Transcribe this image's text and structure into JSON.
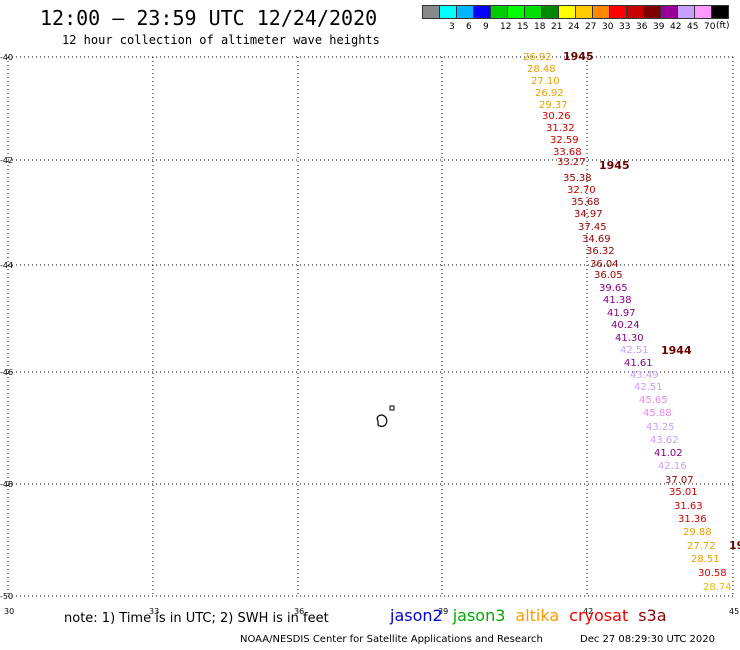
{
  "title": "12:00 – 23:59 UTC 12/24/2020",
  "subtitle": "12 hour collection of altimeter wave heights",
  "colorbar": {
    "swatches": [
      {
        "color": "#888888",
        "label": ""
      },
      {
        "color": "#00ffff",
        "label": "3"
      },
      {
        "color": "#00b4ff",
        "label": "6"
      },
      {
        "color": "#0000ff",
        "label": "9"
      },
      {
        "color": "#00cc00",
        "label": "12"
      },
      {
        "color": "#00ff00",
        "label": "15"
      },
      {
        "color": "#00e000",
        "label": "18"
      },
      {
        "color": "#008800",
        "label": "21"
      },
      {
        "color": "#ffff00",
        "label": "24"
      },
      {
        "color": "#ffcc00",
        "label": "27"
      },
      {
        "color": "#ff8800",
        "label": "30"
      },
      {
        "color": "#ff0000",
        "label": "33"
      },
      {
        "color": "#c80000",
        "label": "36"
      },
      {
        "color": "#800000",
        "label": "39"
      },
      {
        "color": "#990099",
        "label": "42"
      },
      {
        "color": "#c8a0ff",
        "label": "45"
      },
      {
        "color": "#ff99ff",
        "label": "70"
      },
      {
        "color": "#000000",
        "label": ""
      }
    ],
    "unit": "(ft)"
  },
  "map": {
    "lon_range": [
      30,
      45
    ],
    "lat_range": [
      -50,
      -40
    ],
    "grid": true,
    "y_ticks": [
      "-40",
      "-42",
      "-44",
      "-46",
      "-48",
      "-50"
    ],
    "x_ticks": [
      "30",
      "33",
      "36",
      "39",
      "42",
      "45"
    ]
  },
  "track_values": [
    {
      "text": "26.92",
      "color": "#e6a000"
    },
    {
      "text": "28.48",
      "color": "#e6a000"
    },
    {
      "text": "27.10",
      "color": "#e6a000"
    },
    {
      "text": "26.92",
      "color": "#e6a000"
    },
    {
      "text": "29.37",
      "color": "#e6a000"
    },
    {
      "text": "30.26",
      "color": "#cc0000"
    },
    {
      "text": "31.32",
      "color": "#cc0000"
    },
    {
      "text": "32.59",
      "color": "#cc0000"
    },
    {
      "text": "33.68",
      "color": "#cc0000"
    },
    {
      "text": "33.27",
      "color": "#cc0000"
    },
    {
      "text": "35.38",
      "color": "#990000"
    },
    {
      "text": "32.70",
      "color": "#cc0000"
    },
    {
      "text": "35.68",
      "color": "#990000"
    },
    {
      "text": "34.97",
      "color": "#990000"
    },
    {
      "text": "37.45",
      "color": "#990000"
    },
    {
      "text": "34.69",
      "color": "#990000"
    },
    {
      "text": "36.32",
      "color": "#990000"
    },
    {
      "text": "36.04",
      "color": "#990000"
    },
    {
      "text": "36.05",
      "color": "#990000"
    },
    {
      "text": "39.65",
      "color": "#880088"
    },
    {
      "text": "41.38",
      "color": "#880088"
    },
    {
      "text": "41.97",
      "color": "#880088"
    },
    {
      "text": "40.24",
      "color": "#880088"
    },
    {
      "text": "41.30",
      "color": "#880088"
    },
    {
      "text": "42.51",
      "color": "#c8a0ff"
    },
    {
      "text": "41.61",
      "color": "#880088"
    },
    {
      "text": "43.49",
      "color": "#c8a0ff"
    },
    {
      "text": "42.51",
      "color": "#c8a0ff"
    },
    {
      "text": "45.65",
      "color": "#ee88ee"
    },
    {
      "text": "45.88",
      "color": "#ee88ee"
    },
    {
      "text": "43.25",
      "color": "#c8a0ff"
    },
    {
      "text": "43.62",
      "color": "#c8a0ff"
    },
    {
      "text": "41.02",
      "color": "#880088"
    },
    {
      "text": "42.16",
      "color": "#c8a0ff"
    },
    {
      "text": "37.07",
      "color": "#990000"
    },
    {
      "text": "35.01",
      "color": "#cc0000"
    },
    {
      "text": "31.63",
      "color": "#cc0000"
    },
    {
      "text": "31.36",
      "color": "#cc0000"
    },
    {
      "text": "29.88",
      "color": "#e6a000"
    },
    {
      "text": "27.72",
      "color": "#e6a000"
    },
    {
      "text": "28.51",
      "color": "#e6a000"
    },
    {
      "text": "30.58",
      "color": "#cc0000"
    },
    {
      "text": "28.74",
      "color": "#e6c000"
    }
  ],
  "time_labels": [
    "1945",
    "1945",
    "1944",
    "19"
  ],
  "note": "note: 1) Time is in UTC; 2) SWH is in feet",
  "satellites": [
    {
      "name": "jason2",
      "color": "#0000cc"
    },
    {
      "name": "jason3",
      "color": "#00aa00"
    },
    {
      "name": "altika",
      "color": "#ff9900"
    },
    {
      "name": "cryosat",
      "color": "#ee0000"
    },
    {
      "name": "s3a",
      "color": "#880000"
    }
  ],
  "footer_left": "NOAA/NESDIS Center for Satellite Applications and Research",
  "footer_right": "Dec 27 08:29:30 UTC 2020"
}
